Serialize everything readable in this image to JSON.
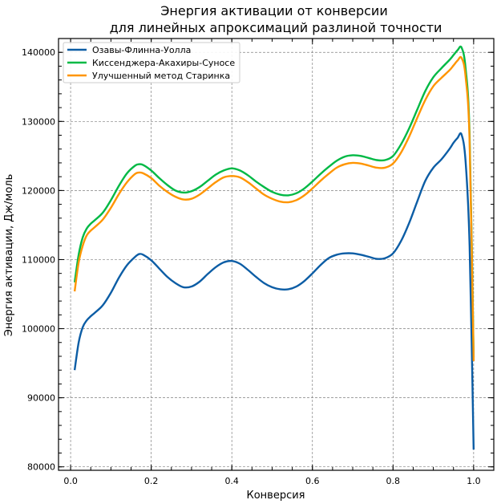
{
  "chart_data": {
    "type": "line",
    "title": [
      "Энергия активации от конверсии",
      "для линейных апроксимаций разлиной точности"
    ],
    "xlabel": "Конверсия",
    "ylabel": "Энергия активации, Дж/моль",
    "xlim": [
      -0.03,
      1.05
    ],
    "ylim": [
      79500,
      142000
    ],
    "xticks": [
      0.0,
      0.2,
      0.4,
      0.6,
      0.8,
      1.0
    ],
    "xtick_labels": [
      "0.0",
      "0.2",
      "0.4",
      "0.6",
      "0.8",
      "1.0"
    ],
    "yticks": [
      80000,
      90000,
      100000,
      110000,
      120000,
      130000,
      140000
    ],
    "ytick_labels": [
      "80000",
      "90000",
      "100000",
      "110000",
      "120000",
      "130000",
      "140000"
    ],
    "grid": true,
    "legend_position": "top-left",
    "series": [
      {
        "name": "Озавы-Флинна-Уолла",
        "color": "#0c5da5",
        "x": [
          0.01,
          0.02,
          0.03,
          0.04,
          0.05,
          0.06,
          0.08,
          0.1,
          0.12,
          0.14,
          0.16,
          0.17,
          0.18,
          0.2,
          0.22,
          0.24,
          0.26,
          0.28,
          0.3,
          0.32,
          0.34,
          0.36,
          0.38,
          0.4,
          0.42,
          0.44,
          0.46,
          0.48,
          0.5,
          0.52,
          0.54,
          0.56,
          0.58,
          0.6,
          0.62,
          0.64,
          0.66,
          0.68,
          0.7,
          0.72,
          0.74,
          0.76,
          0.78,
          0.8,
          0.82,
          0.84,
          0.86,
          0.88,
          0.9,
          0.92,
          0.94,
          0.95,
          0.96,
          0.97,
          0.98,
          0.99,
          1.0
        ],
        "y": [
          94000,
          98000,
          100200,
          101200,
          101800,
          102300,
          103400,
          105200,
          107400,
          109200,
          110400,
          110800,
          110700,
          109900,
          108700,
          107500,
          106600,
          106000,
          106100,
          106800,
          107900,
          108900,
          109600,
          109800,
          109400,
          108500,
          107500,
          106600,
          106000,
          105700,
          105700,
          106100,
          106900,
          108000,
          109200,
          110200,
          110700,
          110900,
          110900,
          110700,
          110400,
          110100,
          110200,
          110900,
          112700,
          115300,
          118400,
          121400,
          123300,
          124500,
          126000,
          126900,
          127600,
          128100,
          124200,
          112000,
          82500
        ]
      },
      {
        "name": "Киссенджера-Акахиры-Суносе",
        "color": "#00b945",
        "x": [
          0.01,
          0.02,
          0.03,
          0.04,
          0.05,
          0.06,
          0.08,
          0.1,
          0.12,
          0.14,
          0.16,
          0.17,
          0.18,
          0.2,
          0.22,
          0.24,
          0.26,
          0.28,
          0.3,
          0.32,
          0.34,
          0.36,
          0.38,
          0.4,
          0.42,
          0.44,
          0.46,
          0.48,
          0.5,
          0.52,
          0.54,
          0.56,
          0.58,
          0.6,
          0.62,
          0.64,
          0.66,
          0.68,
          0.7,
          0.72,
          0.74,
          0.76,
          0.78,
          0.8,
          0.82,
          0.84,
          0.86,
          0.88,
          0.9,
          0.92,
          0.94,
          0.95,
          0.96,
          0.97,
          0.98,
          0.99,
          1.0
        ],
        "y": [
          106700,
          110700,
          113200,
          114500,
          115200,
          115700,
          116800,
          118600,
          120700,
          122500,
          123600,
          123800,
          123700,
          122900,
          121800,
          120800,
          120000,
          119700,
          119900,
          120500,
          121400,
          122300,
          122900,
          123200,
          122900,
          122200,
          121300,
          120500,
          119800,
          119400,
          119300,
          119600,
          120300,
          121300,
          122400,
          123400,
          124300,
          124900,
          125100,
          125000,
          124700,
          124400,
          124400,
          125000,
          126700,
          129000,
          131700,
          134400,
          136400,
          137700,
          138900,
          139600,
          140300,
          140700,
          137700,
          128000,
          95800
        ]
      },
      {
        "name": "Улучшенный метод Старинка",
        "color": "#ff9500",
        "x": [
          0.01,
          0.02,
          0.03,
          0.04,
          0.05,
          0.06,
          0.08,
          0.1,
          0.12,
          0.14,
          0.16,
          0.17,
          0.18,
          0.2,
          0.22,
          0.24,
          0.26,
          0.28,
          0.3,
          0.32,
          0.34,
          0.36,
          0.38,
          0.4,
          0.42,
          0.44,
          0.46,
          0.48,
          0.5,
          0.52,
          0.54,
          0.56,
          0.58,
          0.6,
          0.62,
          0.64,
          0.66,
          0.68,
          0.7,
          0.72,
          0.74,
          0.76,
          0.78,
          0.8,
          0.82,
          0.84,
          0.86,
          0.88,
          0.9,
          0.92,
          0.94,
          0.95,
          0.96,
          0.97,
          0.98,
          0.99,
          1.0
        ],
        "y": [
          105400,
          109600,
          112000,
          113500,
          114200,
          114700,
          115800,
          117500,
          119500,
          121200,
          122400,
          122600,
          122500,
          121800,
          120700,
          119800,
          119100,
          118700,
          118800,
          119400,
          120300,
          121200,
          121900,
          122100,
          121900,
          121200,
          120300,
          119400,
          118800,
          118400,
          118300,
          118600,
          119300,
          120300,
          121400,
          122400,
          123300,
          123800,
          124000,
          123900,
          123600,
          123300,
          123300,
          123900,
          125500,
          127800,
          130500,
          133100,
          135100,
          136300,
          137400,
          138100,
          138800,
          139200,
          136500,
          127000,
          95300
        ]
      }
    ]
  }
}
